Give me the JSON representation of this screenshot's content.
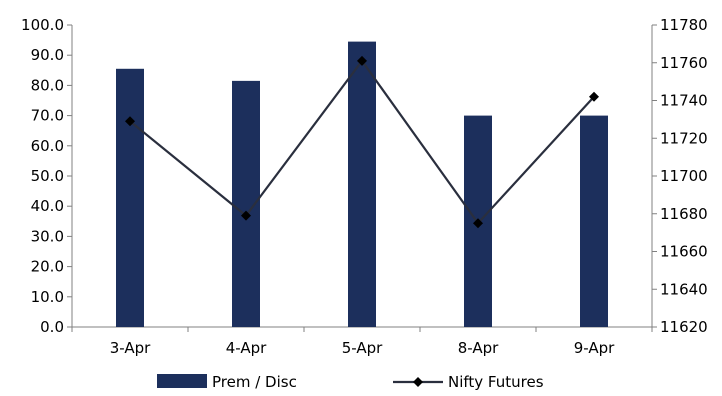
{
  "chart_data": {
    "type": "bar+line",
    "categories": [
      "3-Apr",
      "4-Apr",
      "5-Apr",
      "8-Apr",
      "9-Apr"
    ],
    "series": [
      {
        "name": "Prem / Disc",
        "type": "bar",
        "axis": "left",
        "color": "#1c2f5c",
        "values": [
          85.5,
          81.5,
          94.5,
          70.0,
          70.0
        ]
      },
      {
        "name": "Nifty Futures",
        "type": "line",
        "axis": "right",
        "color": "#2a2f3e",
        "marker": "diamond",
        "values": [
          11729,
          11679,
          11761,
          11675,
          11742
        ]
      }
    ],
    "y_left": {
      "min": 0,
      "max": 100,
      "step": 10,
      "ticks": [
        "0.0",
        "10.0",
        "20.0",
        "30.0",
        "40.0",
        "50.0",
        "60.0",
        "70.0",
        "80.0",
        "90.0",
        "100.0"
      ]
    },
    "y_right": {
      "min": 11620,
      "max": 11780,
      "step": 20,
      "ticks": [
        "11620",
        "11640",
        "11660",
        "11680",
        "11700",
        "11720",
        "11740",
        "11760",
        "11780"
      ]
    },
    "grid": false,
    "legend_position": "bottom"
  }
}
